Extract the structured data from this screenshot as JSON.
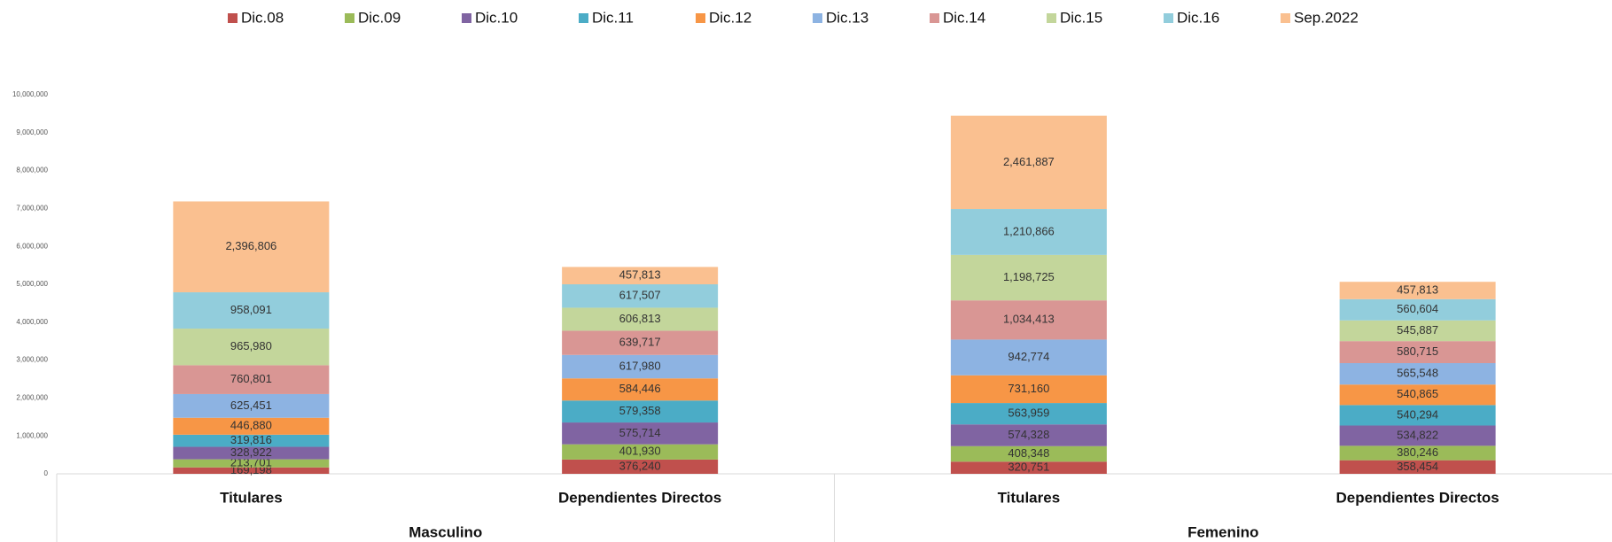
{
  "chart_data": {
    "type": "stacked_bar",
    "categories": [
      "Titulares",
      "Dependientes Directos",
      "Titulares",
      "Dependientes Directos"
    ],
    "groups": [
      "Masculino",
      "Femenino"
    ],
    "ylim": [
      0,
      10000000
    ],
    "yticks": [
      0,
      {
        "value": 1000000,
        "label": "1,000,000"
      },
      {
        "value": 2000000,
        "label": "2,000,000"
      },
      {
        "value": 3000000,
        "label": "3,000,000"
      },
      {
        "value": 4000000,
        "label": "4,000,000"
      },
      {
        "value": 5000000,
        "label": "5,000,000"
      },
      {
        "value": 6000000,
        "label": "6,000,000"
      },
      {
        "value": 7000000,
        "label": "7,000,000"
      },
      {
        "value": 8000000,
        "label": "8,000,000"
      },
      {
        "value": 9000000,
        "label": "9,000,000"
      },
      {
        "value": 10000000,
        "label": "10,000,000"
      }
    ],
    "legend": "top",
    "series": [
      {
        "name": "Dic.08",
        "color": "#c0504d",
        "values": [
          169198,
          376240,
          320751,
          358454
        ],
        "value_labels": [
          "169,198",
          "376,240",
          "320,751",
          "358,454"
        ]
      },
      {
        "name": "Dic.09",
        "color": "#9bbb59",
        "values": [
          213701,
          401930,
          408348,
          380246
        ],
        "value_labels": [
          "213,701",
          "401,930",
          "408,348",
          "380,246"
        ]
      },
      {
        "name": "Dic.10",
        "color": "#8064a2",
        "values": [
          328922,
          575714,
          574328,
          534822
        ],
        "value_labels": [
          "328,922",
          "575,714",
          "574,328",
          "534,822"
        ]
      },
      {
        "name": "Dic.11",
        "color": "#4bacc6",
        "values": [
          319816,
          579358,
          563959,
          540294
        ],
        "value_labels": [
          "319,816",
          "579,358",
          "563,959",
          "540,294"
        ]
      },
      {
        "name": "Dic.12",
        "color": "#f79646",
        "values": [
          446880,
          584446,
          731160,
          540865
        ],
        "value_labels": [
          "446,880",
          "584,446",
          "731,160",
          "540,865"
        ]
      },
      {
        "name": "Dic.13",
        "color": "#8db3e2",
        "values": [
          625451,
          617980,
          942774,
          565548
        ],
        "value_labels": [
          "625,451",
          "617,980",
          "942,774",
          "565,548"
        ]
      },
      {
        "name": "Dic.14",
        "color": "#d99694",
        "values": [
          760801,
          639717,
          1034413,
          580715
        ],
        "value_labels": [
          "760,801",
          "639,717",
          "1,034,413",
          "580,715"
        ]
      },
      {
        "name": "Dic.15",
        "color": "#c3d69b",
        "values": [
          965980,
          606813,
          1198725,
          545887
        ],
        "value_labels": [
          "965,980",
          "606,813",
          "1,198,725",
          "545,887"
        ]
      },
      {
        "name": "Dic.16",
        "color": "#92cddc",
        "values": [
          958091,
          617507,
          1210866,
          560604
        ],
        "value_labels": [
          "958,091",
          "617,507",
          "1,210,866",
          "560,604"
        ]
      },
      {
        "name": "Sep.2022",
        "color": "#fac090",
        "values": [
          2396806,
          457813,
          2461887,
          457813
        ],
        "value_labels": [
          "2,396,806",
          "457,813",
          "2,461,887",
          "457,813"
        ]
      }
    ]
  }
}
